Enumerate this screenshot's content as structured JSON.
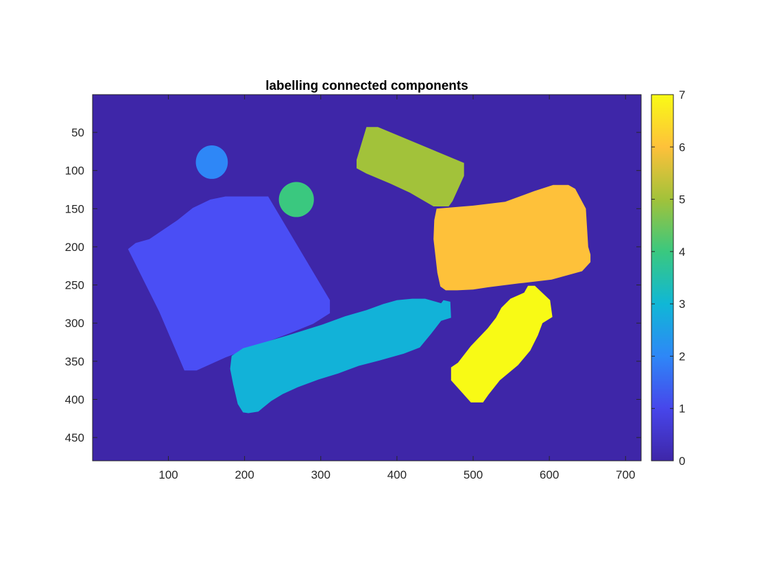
{
  "chart_data": {
    "type": "heatmap",
    "title": "labelling connected components",
    "xlabel": "",
    "ylabel": "",
    "xlim": [
      0.5,
      720.5
    ],
    "ylim": [
      0.5,
      480.5
    ],
    "y_direction": "reverse",
    "x_ticks": [
      100,
      200,
      300,
      400,
      500,
      600,
      700
    ],
    "x_tick_labels": [
      "100",
      "200",
      "300",
      "400",
      "500",
      "600",
      "700"
    ],
    "y_ticks": [
      50,
      100,
      150,
      200,
      250,
      300,
      350,
      400,
      450
    ],
    "y_tick_labels": [
      "50",
      "100",
      "150",
      "200",
      "250",
      "300",
      "350",
      "400",
      "450"
    ],
    "grid": false,
    "colorbar": {
      "location": "right",
      "limits": [
        0,
        7
      ],
      "ticks": [
        0,
        1,
        2,
        3,
        4,
        5,
        6,
        7
      ],
      "tick_labels": [
        "0",
        "1",
        "2",
        "3",
        "4",
        "5",
        "6",
        "7"
      ],
      "colormap": "parula",
      "colormap_stops": [
        "#3e26a8",
        "#4746eb",
        "#2e87f7",
        "#10b7d6",
        "#3ac87f",
        "#a2c23a",
        "#fec13a",
        "#f9fb15"
      ]
    },
    "background_label": 0,
    "components": [
      {
        "label": 1,
        "shape": "polygon",
        "color": "#4a4ef5",
        "points": [
          [
            47,
            203
          ],
          [
            57,
            195
          ],
          [
            75,
            190
          ],
          [
            112,
            165
          ],
          [
            132,
            149
          ],
          [
            155,
            138
          ],
          [
            175,
            134
          ],
          [
            231,
            134
          ],
          [
            312,
            270
          ],
          [
            312,
            287
          ],
          [
            290,
            301
          ],
          [
            260,
            313
          ],
          [
            175,
            345
          ],
          [
            137,
            362
          ],
          [
            121,
            362
          ],
          [
            88,
            285
          ]
        ]
      },
      {
        "label": 2,
        "shape": "ellipse",
        "color": "#2e87f7",
        "center": [
          157,
          89
        ],
        "radii": [
          21,
          22
        ]
      },
      {
        "label": 3,
        "shape": "polygon",
        "color": "#12b2d8",
        "points": [
          [
            183,
            343
          ],
          [
            198,
            333
          ],
          [
            230,
            324
          ],
          [
            257,
            316
          ],
          [
            302,
            302
          ],
          [
            332,
            291
          ],
          [
            360,
            283
          ],
          [
            382,
            275
          ],
          [
            400,
            270
          ],
          [
            420,
            268
          ],
          [
            437,
            268
          ],
          [
            451,
            272
          ],
          [
            458,
            274
          ],
          [
            461,
            270
          ],
          [
            470,
            272
          ],
          [
            471,
            293
          ],
          [
            458,
            297
          ],
          [
            444,
            315
          ],
          [
            430,
            332
          ],
          [
            409,
            340
          ],
          [
            377,
            349
          ],
          [
            350,
            356
          ],
          [
            323,
            366
          ],
          [
            297,
            374
          ],
          [
            270,
            384
          ],
          [
            250,
            393
          ],
          [
            235,
            402
          ],
          [
            218,
            416
          ],
          [
            205,
            418
          ],
          [
            198,
            417
          ],
          [
            191,
            406
          ],
          [
            185,
            380
          ],
          [
            181,
            360
          ]
        ]
      },
      {
        "label": 4,
        "shape": "ellipse",
        "color": "#3ac87f",
        "center": [
          268,
          138
        ],
        "radii": [
          23,
          23
        ]
      },
      {
        "label": 5,
        "shape": "polygon",
        "color": "#a2c23a",
        "points": [
          [
            360,
            43
          ],
          [
            375,
            43
          ],
          [
            488,
            90
          ],
          [
            488,
            107
          ],
          [
            473,
            140
          ],
          [
            468,
            147
          ],
          [
            448,
            147
          ],
          [
            417,
            129
          ],
          [
            391,
            117
          ],
          [
            360,
            104
          ],
          [
            347,
            97
          ],
          [
            347,
            86
          ]
        ]
      },
      {
        "label": 6,
        "shape": "polygon",
        "color": "#fec13a",
        "points": [
          [
            452,
            150
          ],
          [
            500,
            146
          ],
          [
            542,
            141
          ],
          [
            580,
            127
          ],
          [
            605,
            119
          ],
          [
            625,
            119
          ],
          [
            634,
            124
          ],
          [
            648,
            150
          ],
          [
            651,
            200
          ],
          [
            654,
            210
          ],
          [
            654,
            220
          ],
          [
            643,
            232
          ],
          [
            603,
            243
          ],
          [
            560,
            248
          ],
          [
            520,
            253
          ],
          [
            500,
            256
          ],
          [
            479,
            257
          ],
          [
            464,
            257
          ],
          [
            457,
            252
          ],
          [
            453,
            234
          ],
          [
            448,
            190
          ],
          [
            449,
            165
          ]
        ]
      },
      {
        "label": 7,
        "shape": "polygon",
        "color": "#f8fa15",
        "points": [
          [
            480,
            352
          ],
          [
            497,
            330
          ],
          [
            519,
            307
          ],
          [
            530,
            293
          ],
          [
            537,
            280
          ],
          [
            549,
            268
          ],
          [
            567,
            260
          ],
          [
            572,
            251
          ],
          [
            581,
            251
          ],
          [
            601,
            270
          ],
          [
            604,
            292
          ],
          [
            591,
            300
          ],
          [
            585,
            316
          ],
          [
            575,
            336
          ],
          [
            559,
            355
          ],
          [
            535,
            375
          ],
          [
            520,
            394
          ],
          [
            513,
            404
          ],
          [
            497,
            404
          ],
          [
            480,
            385
          ],
          [
            471,
            375
          ],
          [
            471,
            358
          ]
        ]
      }
    ]
  }
}
